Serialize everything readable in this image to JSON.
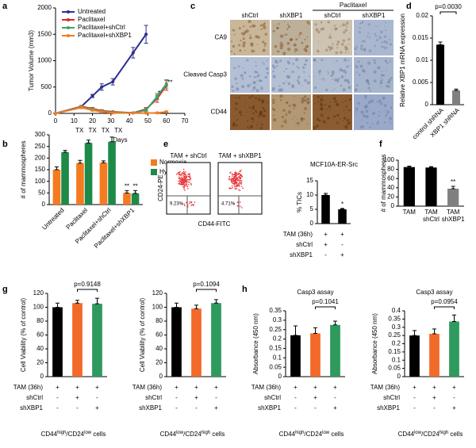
{
  "chart_data": [
    {
      "type": "line",
      "panel": "a",
      "ylabel": "Tumor Volume (mm3)",
      "xlabel": "Days",
      "xlim": [
        0,
        70
      ],
      "xticks": [
        0,
        10,
        20,
        30,
        40,
        50,
        60,
        70
      ],
      "ylim": [
        0,
        2000
      ],
      "yticks": [
        0,
        500,
        1000,
        1500,
        2000
      ],
      "x": [
        0,
        14,
        20,
        25,
        31,
        42,
        49,
        55,
        60
      ],
      "legend": "upper left",
      "series": [
        {
          "name": "Untreated",
          "color": "#2b2f8f",
          "values": [
            0,
            130,
            330,
            500,
            600,
            1150,
            1500,
            null,
            null
          ],
          "errors": [
            0,
            20,
            30,
            60,
            60,
            100,
            170,
            null,
            null
          ]
        },
        {
          "name": "Paclitaxel",
          "color": "#e0261f",
          "values": [
            0,
            130,
            90,
            50,
            30,
            10,
            80,
            280,
            530
          ],
          "errors": [
            0,
            20,
            20,
            15,
            10,
            10,
            30,
            70,
            90
          ]
        },
        {
          "name": "Paclitaxel+shCtrl",
          "color": "#3aa36c",
          "values": [
            0,
            120,
            80,
            40,
            20,
            10,
            60,
            320,
            560
          ],
          "errors": [
            0,
            20,
            15,
            10,
            10,
            5,
            30,
            60,
            80
          ]
        },
        {
          "name": "Paclitaxel+shXBP1",
          "color": "#f07b25",
          "values": [
            0,
            110,
            60,
            30,
            10,
            5,
            5,
            10,
            30
          ],
          "errors": [
            0,
            20,
            15,
            10,
            5,
            5,
            5,
            10,
            15
          ]
        }
      ],
      "treatments": [
        {
          "text": "TX",
          "x": 13
        },
        {
          "text": "TX",
          "x": 20
        },
        {
          "text": "TX",
          "x": 27
        },
        {
          "text": "TX",
          "x": 34
        }
      ],
      "annotations": [
        {
          "text": "*",
          "x": 56,
          "y": 380
        },
        {
          "text": "**",
          "x": 62,
          "y": 580
        }
      ]
    },
    {
      "type": "bar",
      "panel": "b",
      "ylabel": "# of mammospheres",
      "ylim": [
        0,
        300
      ],
      "yticks": [
        0,
        50,
        100,
        150,
        200,
        250,
        300
      ],
      "categories": [
        "Untreated",
        "Paclitaxel",
        "Paclitaxel+shCtrl",
        "Paclitaxel+shXBP1"
      ],
      "legend": "right",
      "series": [
        {
          "name": "Normoxia",
          "color": "#f47b20",
          "values": [
            150,
            178,
            180,
            50
          ],
          "errors": [
            12,
            12,
            8,
            10
          ],
          "significance": [
            null,
            null,
            null,
            "**"
          ]
        },
        {
          "name": "Hypoxia",
          "color": "#1e8a4a",
          "values": [
            225,
            265,
            270,
            48
          ],
          "errors": [
            8,
            12,
            20,
            12
          ],
          "significance": [
            null,
            null,
            null,
            "**"
          ]
        }
      ]
    },
    {
      "type": "micrograph",
      "panel": "c",
      "group_label": "Paclitaxel",
      "columns": [
        "shCtrl",
        "shXBP1",
        "shCtrl",
        "shXBP1"
      ],
      "rows": [
        "CA9",
        "Cleaved Casp3",
        "CD44"
      ]
    },
    {
      "type": "bar",
      "panel": "d",
      "ylabel": "Relative XBP1 mRNA expression",
      "ylim": [
        0,
        0.02
      ],
      "yticks": [
        0,
        0.005,
        0.01,
        0.015,
        0.02
      ],
      "categories": [
        "control shRNA",
        "XBP1 shRNA"
      ],
      "values": [
        0.0135,
        0.0032
      ],
      "errors": [
        0.0006,
        0.0003
      ],
      "colors": [
        "#000000",
        "#808080"
      ],
      "p_label": "p=0.0030"
    },
    {
      "type": "flow",
      "panel": "e",
      "xlabel": "CD44-FITC",
      "ylabel": "CD24-PE",
      "plots": [
        {
          "title": "TAM + shCtrl",
          "gate": "9.23%"
        },
        {
          "title": "TAM + shXBP1",
          "gate": "4.71%"
        }
      ]
    },
    {
      "type": "bar",
      "title": "MCF10A-ER-Src",
      "ylabel": "% TICs",
      "ylim": [
        0,
        15
      ],
      "yticks": [
        0,
        5,
        10,
        15
      ],
      "values": [
        10,
        5
      ],
      "errors": [
        0.6,
        0.3
      ],
      "colors": [
        "#000000",
        "#000000"
      ],
      "significance": [
        null,
        "*"
      ],
      "conditions": [
        {
          "label": "TAM (36h)",
          "marks": [
            "+",
            "+"
          ]
        },
        {
          "label": "shCtrl",
          "marks": [
            "+",
            "-"
          ]
        },
        {
          "label": "shXBP1",
          "marks": [
            "-",
            "+"
          ]
        }
      ]
    },
    {
      "type": "bar",
      "panel": "f",
      "ylabel": "# of mammospheres",
      "ylim": [
        0,
        100
      ],
      "yticks": [
        0,
        20,
        40,
        60,
        80,
        100
      ],
      "categories": [
        "TAM",
        "TAM shCtrl",
        "TAM shXBP1"
      ],
      "values": [
        85,
        84,
        38
      ],
      "errors": [
        2,
        2,
        5
      ],
      "colors": [
        "#000000",
        "#000000",
        "#808080"
      ],
      "significance": [
        null,
        null,
        "**"
      ]
    },
    {
      "type": "bar",
      "panel": "g",
      "ylabel": "Cell Viability (% of control)",
      "ylim": [
        0,
        120
      ],
      "yticks": [
        0,
        20,
        40,
        60,
        80,
        100,
        120
      ],
      "values": [
        100,
        106,
        105
      ],
      "errors": [
        6,
        4,
        8
      ],
      "colors": [
        "#000000",
        "#f26a2a",
        "#2e9a5e"
      ],
      "p_label": "p=0.9148",
      "conditions": [
        {
          "label": "TAM (36h)",
          "marks": [
            "+",
            "+",
            "+"
          ]
        },
        {
          "label": "shCtrl",
          "marks": [
            "-",
            "+",
            "-"
          ]
        },
        {
          "label": "shXBP1",
          "marks": [
            "-",
            "-",
            "+"
          ]
        }
      ],
      "footnote": [
        "CD44",
        "high",
        "/CD24",
        "low",
        " cells"
      ]
    },
    {
      "type": "bar",
      "ylabel": "Cell Viability (% of control)",
      "ylim": [
        0,
        120
      ],
      "yticks": [
        0,
        20,
        40,
        60,
        80,
        100,
        120
      ],
      "values": [
        100,
        98,
        106
      ],
      "errors": [
        6,
        5,
        5
      ],
      "colors": [
        "#000000",
        "#f26a2a",
        "#2e9a5e"
      ],
      "p_label": "p=0.1094",
      "conditions": [
        {
          "label": "TAM (36h)",
          "marks": [
            "+",
            "+",
            "+"
          ]
        },
        {
          "label": "shCtrl",
          "marks": [
            "-",
            "+",
            "-"
          ]
        },
        {
          "label": "shXBP1",
          "marks": [
            "-",
            "-",
            "+"
          ]
        }
      ],
      "footnote": [
        "CD44",
        "low",
        "/CD24",
        "high",
        " cells"
      ]
    },
    {
      "type": "bar",
      "panel": "h",
      "title": "Casp3 assay",
      "ylabel": "Absorbance (450 nm)",
      "ylim": [
        0,
        0.35
      ],
      "yticks": [
        0,
        0.05,
        0.1,
        0.15,
        0.2,
        0.25,
        0.3,
        0.35
      ],
      "values": [
        0.22,
        0.23,
        0.275
      ],
      "errors": [
        0.05,
        0.03,
        0.02
      ],
      "colors": [
        "#000000",
        "#f26a2a",
        "#2e9a5e"
      ],
      "p_label": "p=0.1041",
      "conditions": [
        {
          "label": "TAM (36h)",
          "marks": [
            "+",
            "+",
            "+"
          ]
        },
        {
          "label": "shCtrl",
          "marks": [
            "-",
            "+",
            "-"
          ]
        },
        {
          "label": "shXBP1",
          "marks": [
            "-",
            "-",
            "+"
          ]
        }
      ],
      "footnote": [
        "CD44",
        "high",
        "/CD24",
        "low",
        " cells"
      ]
    },
    {
      "type": "bar",
      "title": "Casp3 assay",
      "ylabel": "Absorbance (450 nm)",
      "ylim": [
        0,
        0.4
      ],
      "yticks": [
        0,
        0.05,
        0.1,
        0.15,
        0.2,
        0.25,
        0.3,
        0.35,
        0.4
      ],
      "values": [
        0.25,
        0.26,
        0.335
      ],
      "errors": [
        0.03,
        0.03,
        0.04
      ],
      "colors": [
        "#000000",
        "#f26a2a",
        "#2e9a5e"
      ],
      "p_label": "p=0.0954",
      "conditions": [
        {
          "label": "TAM (36h)",
          "marks": [
            "+",
            "+",
            "+"
          ]
        },
        {
          "label": "shCtrl",
          "marks": [
            "-",
            "+",
            "-"
          ]
        },
        {
          "label": "shXBP1",
          "marks": [
            "-",
            "-",
            "+"
          ]
        }
      ],
      "footnote": [
        "CD44",
        "low",
        "/CD24",
        "high",
        " cells"
      ]
    }
  ]
}
